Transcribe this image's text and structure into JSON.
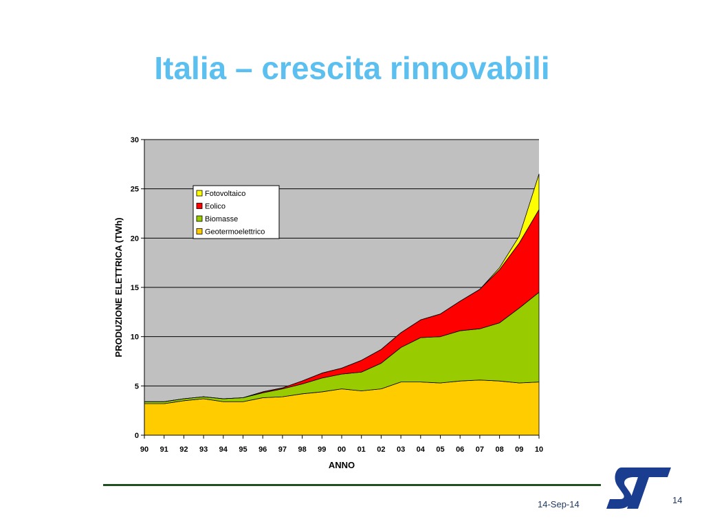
{
  "slide": {
    "title": "Italia – crescita rinnovabili",
    "title_color": "#5bc0f0",
    "footer_date": "14-Sep-14",
    "page_number": "14",
    "logo_icon": "st-logo-icon"
  },
  "chart_data": {
    "type": "area",
    "stacked": true,
    "title": "",
    "xlabel": "ANNO",
    "ylabel": "PRODUZIONE ELETTRICA (TWh)",
    "ylim": [
      0,
      30
    ],
    "yticks": [
      0,
      5,
      10,
      15,
      20,
      25,
      30
    ],
    "grid": true,
    "plot_background": "#c0c0c0",
    "legend_position": "upper-left inside plot",
    "categories": [
      "90",
      "91",
      "92",
      "93",
      "94",
      "95",
      "96",
      "97",
      "98",
      "99",
      "00",
      "01",
      "02",
      "03",
      "04",
      "05",
      "06",
      "07",
      "08",
      "09",
      "10"
    ],
    "series": [
      {
        "name": "Geotermoelettrico",
        "color": "#ffcc00",
        "values": [
          3.2,
          3.2,
          3.5,
          3.7,
          3.4,
          3.4,
          3.8,
          3.9,
          4.2,
          4.4,
          4.7,
          4.5,
          4.7,
          5.4,
          5.4,
          5.3,
          5.5,
          5.6,
          5.5,
          5.3,
          5.4
        ]
      },
      {
        "name": "Biomasse",
        "color": "#99cc00",
        "values": [
          0.2,
          0.2,
          0.2,
          0.2,
          0.3,
          0.4,
          0.5,
          0.8,
          1.0,
          1.4,
          1.5,
          1.9,
          2.6,
          3.5,
          4.5,
          4.7,
          5.1,
          5.2,
          5.9,
          7.6,
          9.1
        ]
      },
      {
        "name": "Eolico",
        "color": "#ff0000",
        "values": [
          0,
          0,
          0,
          0,
          0,
          0,
          0.1,
          0.1,
          0.3,
          0.5,
          0.6,
          1.2,
          1.4,
          1.5,
          1.8,
          2.3,
          3.0,
          4.0,
          5.4,
          6.6,
          8.4
        ]
      },
      {
        "name": "Fotovoltaico",
        "color": "#ffff00",
        "values": [
          0,
          0,
          0,
          0,
          0,
          0,
          0,
          0,
          0,
          0,
          0,
          0,
          0,
          0,
          0,
          0,
          0,
          0,
          0.2,
          0.7,
          3.6
        ]
      }
    ]
  }
}
